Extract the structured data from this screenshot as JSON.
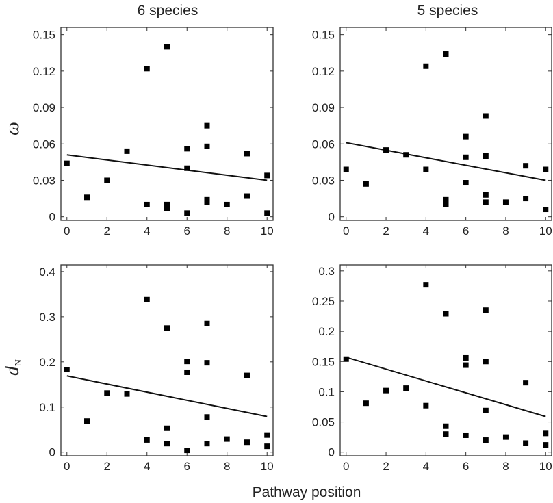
{
  "figure": {
    "column_titles": [
      "6 species",
      "5 species"
    ],
    "xlabel": "Pathway position"
  },
  "chart_data": [
    {
      "type": "scatter",
      "title": "6 species",
      "xlabel": "",
      "ylabel": "ω",
      "xlim": [
        -0.3,
        10.3
      ],
      "ylim": [
        -0.003,
        0.156
      ],
      "xticks": [
        0,
        2,
        4,
        6,
        8,
        10
      ],
      "xtick_labels": [
        "0",
        "2",
        "4",
        "6",
        "8",
        "10"
      ],
      "yticks": [
        0,
        0.03,
        0.06,
        0.09,
        0.12,
        0.15
      ],
      "ytick_labels": [
        "0",
        "0.03",
        "0.06",
        "0.09",
        "0.12",
        "0.15"
      ],
      "grid": false,
      "x": [
        0,
        1,
        2,
        3,
        4,
        4,
        5,
        5,
        5,
        5,
        6,
        6,
        6,
        7,
        7,
        7,
        7,
        8,
        9,
        9,
        10,
        10
      ],
      "y": [
        0.044,
        0.016,
        0.03,
        0.054,
        0.122,
        0.01,
        0.14,
        0.01,
        0.007,
        0.01,
        0.056,
        0.04,
        0.003,
        0.075,
        0.058,
        0.014,
        0.012,
        0.01,
        0.052,
        0.017,
        0.034,
        0.003
      ],
      "trendline": {
        "x": [
          0,
          10
        ],
        "y": [
          0.051,
          0.03
        ]
      }
    },
    {
      "type": "scatter",
      "title": "5 species",
      "xlabel": "",
      "ylabel": "",
      "xlim": [
        -0.3,
        10.3
      ],
      "ylim": [
        -0.003,
        0.156
      ],
      "xticks": [
        0,
        2,
        4,
        6,
        8,
        10
      ],
      "xtick_labels": [
        "0",
        "2",
        "4",
        "6",
        "8",
        "10"
      ],
      "yticks": [
        0,
        0.03,
        0.06,
        0.09,
        0.12,
        0.15
      ],
      "ytick_labels": [
        "0",
        "0.03",
        "0.06",
        "0.09",
        "0.12",
        "0.15"
      ],
      "grid": false,
      "x": [
        0,
        1,
        2,
        3,
        4,
        4,
        5,
        5,
        5,
        6,
        6,
        6,
        7,
        7,
        7,
        7,
        8,
        9,
        9,
        10,
        10
      ],
      "y": [
        0.039,
        0.027,
        0.055,
        0.051,
        0.124,
        0.039,
        0.134,
        0.014,
        0.01,
        0.066,
        0.049,
        0.028,
        0.083,
        0.05,
        0.018,
        0.012,
        0.012,
        0.042,
        0.015,
        0.039,
        0.006
      ],
      "trendline": {
        "x": [
          0,
          10
        ],
        "y": [
          0.061,
          0.03
        ]
      }
    },
    {
      "type": "scatter",
      "title": "",
      "xlabel": "Pathway position",
      "ylabel": "dN",
      "xlim": [
        -0.3,
        10.3
      ],
      "ylim": [
        -0.008,
        0.415
      ],
      "xticks": [
        0,
        2,
        4,
        6,
        8,
        10
      ],
      "xtick_labels": [
        "0",
        "2",
        "4",
        "6",
        "8",
        "10"
      ],
      "yticks": [
        0,
        0.1,
        0.2,
        0.3,
        0.4
      ],
      "ytick_labels": [
        "0",
        "0.1",
        "0.2",
        "0.3",
        "0.4"
      ],
      "grid": false,
      "x": [
        0,
        1,
        2,
        3,
        4,
        4,
        5,
        5,
        5,
        6,
        6,
        6,
        7,
        7,
        7,
        7,
        8,
        9,
        9,
        10,
        10
      ],
      "y": [
        0.183,
        0.069,
        0.131,
        0.129,
        0.338,
        0.027,
        0.275,
        0.053,
        0.019,
        0.201,
        0.177,
        0.004,
        0.285,
        0.198,
        0.078,
        0.019,
        0.029,
        0.17,
        0.022,
        0.038,
        0.013
      ],
      "trendline": {
        "x": [
          0,
          10
        ],
        "y": [
          0.169,
          0.079
        ]
      }
    },
    {
      "type": "scatter",
      "title": "",
      "xlabel": "Pathway position",
      "ylabel": "",
      "xlim": [
        -0.3,
        10.3
      ],
      "ylim": [
        -0.006,
        0.31
      ],
      "xticks": [
        0,
        2,
        4,
        6,
        8,
        10
      ],
      "xtick_labels": [
        "0",
        "2",
        "4",
        "6",
        "8",
        "10"
      ],
      "yticks": [
        0,
        0.05,
        0.1,
        0.15,
        0.2,
        0.25,
        0.3
      ],
      "ytick_labels": [
        "0",
        "0.05",
        "0.1",
        "0.15",
        "0.2",
        "0.25",
        "0.3"
      ],
      "grid": false,
      "x": [
        0,
        1,
        2,
        3,
        4,
        4,
        5,
        5,
        5,
        6,
        6,
        6,
        7,
        7,
        7,
        7,
        8,
        9,
        9,
        10,
        10
      ],
      "y": [
        0.154,
        0.081,
        0.102,
        0.106,
        0.277,
        0.077,
        0.229,
        0.043,
        0.03,
        0.156,
        0.144,
        0.028,
        0.235,
        0.15,
        0.069,
        0.02,
        0.025,
        0.115,
        0.015,
        0.031,
        0.012
      ],
      "trendline": {
        "x": [
          0,
          10
        ],
        "y": [
          0.157,
          0.059
        ]
      }
    }
  ]
}
